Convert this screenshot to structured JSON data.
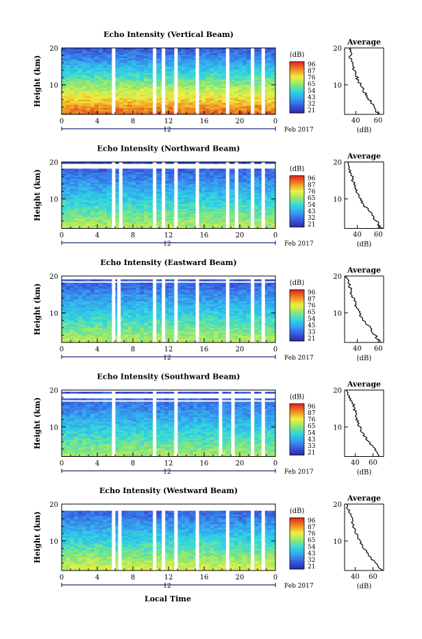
{
  "figure": {
    "xlabel": "Local Time",
    "ylabel": "Height (km)",
    "month_label": "Feb 2017",
    "date_marker": "12",
    "profile_title": "Average",
    "profile_xlabel": "(dB)",
    "colorbar_title": "(dB)"
  },
  "chart_data": [
    {
      "type": "heatmap",
      "title": "Echo Intensity (Vertical Beam)",
      "xlabel": "",
      "ylabel": "Height (km)",
      "xlim": [
        0,
        24
      ],
      "ylim": [
        2,
        20
      ],
      "x_ticks": [
        "0",
        "4",
        "8",
        "12",
        "16",
        "20",
        "0"
      ],
      "y_ticks": [
        "20",
        "10"
      ],
      "colorbar": {
        "title": "(dB)",
        "range": [
          21,
          96
        ],
        "ticks": [
          "96",
          "87",
          "76",
          "65",
          "54",
          "43",
          "32",
          "21"
        ]
      },
      "intensity_profile": {
        "surface_db": 90,
        "top_db": 30
      },
      "top_height_km": 20,
      "data_gaps_hour": [
        5.8,
        10.4,
        11.4,
        12.8,
        15.2,
        18.6,
        21.4,
        22.6
      ],
      "average_profile": {
        "title": "Average",
        "xlabel": "(dB)",
        "x_ticks": [
          "40",
          "60"
        ],
        "y_ticks": [
          "20",
          "10"
        ],
        "xlim": [
          30,
          65
        ],
        "height_km": [
          2,
          4,
          6,
          8,
          10,
          12,
          14,
          16,
          18,
          20
        ],
        "value_db": [
          60,
          57,
          52,
          48,
          44,
          41,
          38,
          37,
          35,
          36
        ]
      }
    },
    {
      "type": "heatmap",
      "title": "Echo Intensity (Northward Beam)",
      "xlabel": "",
      "ylabel": "Height (km)",
      "xlim": [
        0,
        24
      ],
      "ylim": [
        2,
        20
      ],
      "x_ticks": [
        "0",
        "4",
        "8",
        "12",
        "16",
        "20",
        "0"
      ],
      "y_ticks": [
        "20",
        "10"
      ],
      "colorbar": {
        "title": "(dB)",
        "range": [
          21,
          96
        ],
        "ticks": [
          "96",
          "87",
          "76",
          "65",
          "54",
          "43",
          "32",
          "21"
        ]
      },
      "intensity_profile": {
        "surface_db": 68,
        "top_db": 28
      },
      "top_height_km": 18,
      "data_gaps_hour": [
        5.8,
        6.6,
        10.4,
        11.4,
        12.8,
        15.2,
        18.6,
        19.6,
        21.4,
        22.6
      ],
      "average_profile": {
        "title": "Average",
        "xlabel": "(dB)",
        "x_ticks": [
          "40",
          "60"
        ],
        "y_ticks": [
          "20",
          "10"
        ],
        "xlim": [
          28,
          65
        ],
        "height_km": [
          2,
          4,
          6,
          8,
          10,
          12,
          14,
          16,
          18,
          20
        ],
        "value_db": [
          63,
          58,
          53,
          47,
          43,
          40,
          37,
          35,
          33,
          31
        ]
      }
    },
    {
      "type": "heatmap",
      "title": "Echo Intensity (Eastward Beam)",
      "xlabel": "",
      "ylabel": "Height (km)",
      "xlim": [
        0,
        24
      ],
      "ylim": [
        2,
        20
      ],
      "x_ticks": [
        "0",
        "4",
        "8",
        "12",
        "16",
        "20",
        "0"
      ],
      "y_ticks": [
        "20",
        "10"
      ],
      "colorbar": {
        "title": "(dB)",
        "range": [
          21,
          96
        ],
        "ticks": [
          "96",
          "87",
          "76",
          "65",
          "54",
          "45",
          "33",
          "21"
        ]
      },
      "intensity_profile": {
        "surface_db": 68,
        "top_db": 28
      },
      "top_height_km": 18,
      "data_gaps_hour": [
        5.8,
        6.4,
        10.4,
        11.4,
        12.8,
        15.2,
        18.6,
        21.4,
        22.6
      ],
      "average_profile": {
        "title": "Average",
        "xlabel": "(dB)",
        "x_ticks": [
          "40",
          "60"
        ],
        "y_ticks": [
          "20",
          "10"
        ],
        "xlim": [
          28,
          65
        ],
        "height_km": [
          2,
          4,
          6,
          8,
          10,
          12,
          14,
          16,
          18,
          20
        ],
        "value_db": [
          62,
          57,
          52,
          46,
          42,
          39,
          36,
          34,
          32,
          30
        ]
      }
    },
    {
      "type": "heatmap",
      "title": "Echo Intensity (Southward Beam)",
      "xlabel": "",
      "ylabel": "Height (km)",
      "xlim": [
        0,
        24
      ],
      "ylim": [
        2,
        20
      ],
      "x_ticks": [
        "0",
        "4",
        "8",
        "12",
        "16",
        "20",
        "0"
      ],
      "y_ticks": [
        "20",
        "10"
      ],
      "colorbar": {
        "title": "(dB)",
        "range": [
          21,
          96
        ],
        "ticks": [
          "96",
          "87",
          "76",
          "65",
          "54",
          "43",
          "33",
          "21"
        ]
      },
      "intensity_profile": {
        "surface_db": 66,
        "top_db": 28
      },
      "top_height_km": 17,
      "data_gaps_hour": [
        5.8,
        10.4,
        12.8,
        17.8,
        19.2,
        21.4,
        22.6
      ],
      "average_profile": {
        "title": "Average",
        "xlabel": "(dB)",
        "x_ticks": [
          "40",
          "60"
        ],
        "y_ticks": [
          "20",
          "10"
        ],
        "xlim": [
          28,
          72
        ],
        "height_km": [
          2,
          4,
          6,
          8,
          10,
          12,
          14,
          16,
          18,
          20
        ],
        "value_db": [
          68,
          62,
          55,
          49,
          45,
          42,
          40,
          38,
          33,
          30
        ]
      }
    },
    {
      "type": "heatmap",
      "title": "Echo Intensity (Westward Beam)",
      "xlabel": "Local Time",
      "ylabel": "Height (km)",
      "xlim": [
        0,
        24
      ],
      "ylim": [
        2,
        20
      ],
      "x_ticks": [
        "0",
        "4",
        "8",
        "12",
        "16",
        "20",
        "0"
      ],
      "y_ticks": [
        "20",
        "10"
      ],
      "colorbar": {
        "title": "(dB)",
        "range": [
          21,
          96
        ],
        "ticks": [
          "96",
          "87",
          "76",
          "65",
          "54",
          "43",
          "32",
          "21"
        ]
      },
      "intensity_profile": {
        "surface_db": 72,
        "top_db": 28
      },
      "top_height_km": 18,
      "data_gaps_hour": [
        5.8,
        6.5,
        10.4,
        11.4,
        12.8,
        15.2,
        18.6,
        21.4,
        22.6
      ],
      "average_profile": {
        "title": "Average",
        "xlabel": "(dB)",
        "x_ticks": [
          "40",
          "60"
        ],
        "y_ticks": [
          "20",
          "10"
        ],
        "xlim": [
          28,
          72
        ],
        "height_km": [
          2,
          4,
          6,
          8,
          10,
          12,
          14,
          16,
          18,
          20
        ],
        "value_db": [
          70,
          63,
          56,
          50,
          45,
          41,
          38,
          36,
          33,
          30
        ]
      }
    }
  ]
}
